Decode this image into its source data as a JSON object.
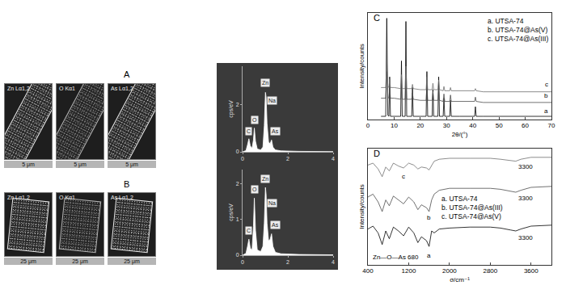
{
  "panels": [
    {
      "label": "A",
      "maps": [
        {
          "element": "Zn Lα1,2",
          "scale": "5 μm"
        },
        {
          "element": "O Kα1",
          "scale": "5 μm"
        },
        {
          "element": "As Lα1,2",
          "scale": "5 μm"
        }
      ]
    },
    {
      "label": "B",
      "maps": [
        {
          "element": "Zn Lα1,2",
          "scale": "25 μm"
        },
        {
          "element": "O Kα1",
          "scale": "25 μm"
        },
        {
          "element": "As Lα1,2",
          "scale": "25 μm"
        }
      ]
    },
    {
      "label": "C"
    },
    {
      "label": "D"
    }
  ],
  "chart_data": [
    {
      "type": "area",
      "ylabel": "cps/eV",
      "color": "#ffffff",
      "grid": false,
      "x": [
        0,
        0.15,
        0.22,
        0.28,
        0.34,
        0.42,
        0.48,
        0.52,
        0.57,
        0.65,
        0.8,
        0.9,
        0.96,
        1.01,
        1.04,
        1.08,
        1.15,
        1.22,
        1.28,
        1.34,
        1.45,
        1.7,
        2.5,
        4
      ],
      "values": [
        0,
        0.05,
        0.3,
        0.55,
        0.25,
        0.15,
        0.5,
        1.0,
        0.45,
        0.12,
        0.08,
        0.2,
        1.1,
        2.5,
        2.3,
        1.2,
        0.4,
        0.35,
        0.5,
        0.2,
        0.08,
        0.04,
        0.02,
        0.01
      ],
      "xlim": [
        0,
        4
      ],
      "xticks": [
        0,
        2,
        4
      ],
      "ylim": [
        0,
        3.6
      ],
      "yticks": [
        0,
        2
      ],
      "annotations": [
        {
          "text": "C",
          "x": 0.25,
          "y": 0.85
        },
        {
          "text": "O",
          "x": 0.52,
          "y": 1.35
        },
        {
          "text": "Zn",
          "x": 1.01,
          "y": 2.9
        },
        {
          "text": "Na",
          "x": 1.3,
          "y": 2.15
        },
        {
          "text": "As",
          "x": 1.45,
          "y": 0.85
        }
      ]
    },
    {
      "type": "area",
      "ylabel": "cps/eV",
      "color": "#ffffff",
      "grid": false,
      "x": [
        0,
        0.15,
        0.22,
        0.28,
        0.34,
        0.42,
        0.48,
        0.52,
        0.57,
        0.65,
        0.8,
        0.9,
        0.96,
        1.01,
        1.04,
        1.08,
        1.15,
        1.22,
        1.28,
        1.34,
        1.45,
        1.7,
        2.5,
        4
      ],
      "values": [
        0,
        0.05,
        0.25,
        0.45,
        0.2,
        0.15,
        0.8,
        1.6,
        0.7,
        0.15,
        0.1,
        0.25,
        0.9,
        1.9,
        1.7,
        0.9,
        0.4,
        0.45,
        0.6,
        0.25,
        0.08,
        0.04,
        0.02,
        0.01
      ],
      "xlim": [
        0,
        4
      ],
      "xticks": [
        0,
        2,
        4
      ],
      "ylim": [
        0,
        2.4
      ],
      "yticks": [
        0,
        1,
        2
      ],
      "annotations": [
        {
          "text": "C",
          "x": 0.25,
          "y": 0.7
        },
        {
          "text": "O",
          "x": 0.52,
          "y": 1.85
        },
        {
          "text": "Zn",
          "x": 1.01,
          "y": 2.15
        },
        {
          "text": "Na",
          "x": 1.3,
          "y": 1.45
        },
        {
          "text": "As",
          "x": 1.45,
          "y": 0.85
        }
      ]
    },
    {
      "type": "line",
      "xlabel": "2θ/(°)",
      "ylabel": "Intensity/counts",
      "grid": false,
      "legend": "top right",
      "tick_labels": "x",
      "xlim": [
        0,
        70
      ],
      "xticks": [
        0,
        10,
        20,
        30,
        40,
        50,
        60,
        70
      ],
      "ylim": [
        0,
        100
      ],
      "yticks": [],
      "x": [
        5,
        6.8,
        7.2,
        7.6,
        8.0,
        8.3,
        8.6,
        10,
        12.5,
        12.8,
        13.1,
        14.2,
        14.5,
        14.8,
        16.7,
        17.0,
        17.3,
        20,
        22.2,
        22.5,
        22.8,
        24.5,
        24.8,
        25.1,
        26.7,
        27.0,
        27.3,
        28.7,
        29.0,
        29.3,
        31.2,
        31.5,
        31.8,
        35,
        40.7,
        41,
        41.3,
        44,
        50,
        60,
        70
      ],
      "series": [
        {
          "name": "a. UTSA-74",
          "color": "#000000",
          "values": [
            3,
            3,
            95,
            4,
            3,
            40,
            3,
            3,
            3,
            55,
            3,
            3,
            92,
            3,
            3,
            30,
            3,
            3,
            3,
            45,
            3,
            3,
            28,
            3,
            3,
            40,
            3,
            3,
            20,
            3,
            3,
            18,
            3,
            3,
            3,
            12,
            3,
            3,
            3,
            3,
            3
          ]
        },
        {
          "name": "b. UTSA-74@As(V)",
          "color": "#4d4d4d",
          "values": [
            20,
            20,
            45,
            21,
            20,
            30,
            20,
            20,
            19,
            35,
            19,
            19,
            42,
            19,
            19,
            25,
            19,
            18,
            18,
            32,
            18,
            18,
            26,
            18,
            18,
            30,
            18,
            17,
            24,
            17,
            17,
            23,
            17,
            17,
            17,
            21,
            17,
            16,
            16,
            16,
            16
          ]
        },
        {
          "name": "c. UTSA-74@As(III)",
          "color": "#707070",
          "values": [
            30,
            30,
            55,
            31,
            30,
            38,
            30,
            30,
            29,
            42,
            29,
            29,
            50,
            29,
            29,
            33,
            29,
            28,
            28,
            40,
            28,
            28,
            34,
            28,
            28,
            37,
            28,
            27,
            31,
            27,
            27,
            30,
            27,
            27,
            27,
            29,
            27,
            26,
            26,
            26,
            26
          ]
        }
      ],
      "annotations": [
        {
          "text": "a",
          "x": 68,
          "y": 8
        },
        {
          "text": "b",
          "x": 68,
          "y": 22
        },
        {
          "text": "c",
          "x": 68,
          "y": 33
        }
      ]
    },
    {
      "type": "line",
      "xlabel": "σ/cm⁻¹",
      "ylabel": "Intensity/counts",
      "grid": false,
      "legend": "center",
      "tick_labels": "x",
      "xlim": [
        400,
        4000
      ],
      "xticks": [
        400,
        1200,
        2000,
        2800,
        3600
      ],
      "ylim": [
        -15,
        105
      ],
      "yticks": [],
      "x": [
        400,
        500,
        600,
        680,
        750,
        820,
        900,
        1000,
        1100,
        1200,
        1300,
        1380,
        1450,
        1550,
        1600,
        1650,
        1700,
        1800,
        2000,
        2400,
        2800,
        3000,
        3200,
        3300,
        3400,
        3600,
        4000
      ],
      "series": [
        {
          "name": "a. UTSA-74",
          "color": "#000000",
          "values": [
            22,
            25,
            18,
            6,
            20,
            12,
            24,
            20,
            15,
            24,
            18,
            8,
            14,
            10,
            4,
            20,
            18,
            22,
            23,
            24,
            24,
            23,
            21,
            20,
            22,
            25,
            26
          ]
        },
        {
          "name": "b. UTSA-74@As(III)",
          "color": "#4d4d4d",
          "values": [
            55,
            58,
            50,
            40,
            52,
            46,
            56,
            52,
            48,
            55,
            50,
            42,
            47,
            44,
            40,
            52,
            58,
            62,
            64,
            64,
            64,
            63,
            61,
            60,
            62,
            65,
            66
          ]
        },
        {
          "name": "c. UTSA-74@As(V)",
          "color": "#707070",
          "values": [
            88,
            90,
            84,
            76,
            86,
            82,
            90,
            87,
            85,
            90,
            88,
            84,
            86,
            85,
            83,
            88,
            92,
            94,
            95,
            95,
            95,
            94,
            93,
            92,
            94,
            96,
            96
          ]
        }
      ],
      "annotations": [
        {
          "text": "3300",
          "x": 3500,
          "y": 13
        },
        {
          "text": "3300",
          "x": 3500,
          "y": 54
        },
        {
          "text": "3300",
          "x": 3500,
          "y": 86
        },
        {
          "text": "a",
          "x": 1600,
          "y": -5
        },
        {
          "text": "b",
          "x": 1600,
          "y": 34
        },
        {
          "text": "c",
          "x": 1100,
          "y": 76
        },
        {
          "text": "Zn—O—As 680",
          "x": 950,
          "y": -7
        }
      ]
    }
  ]
}
